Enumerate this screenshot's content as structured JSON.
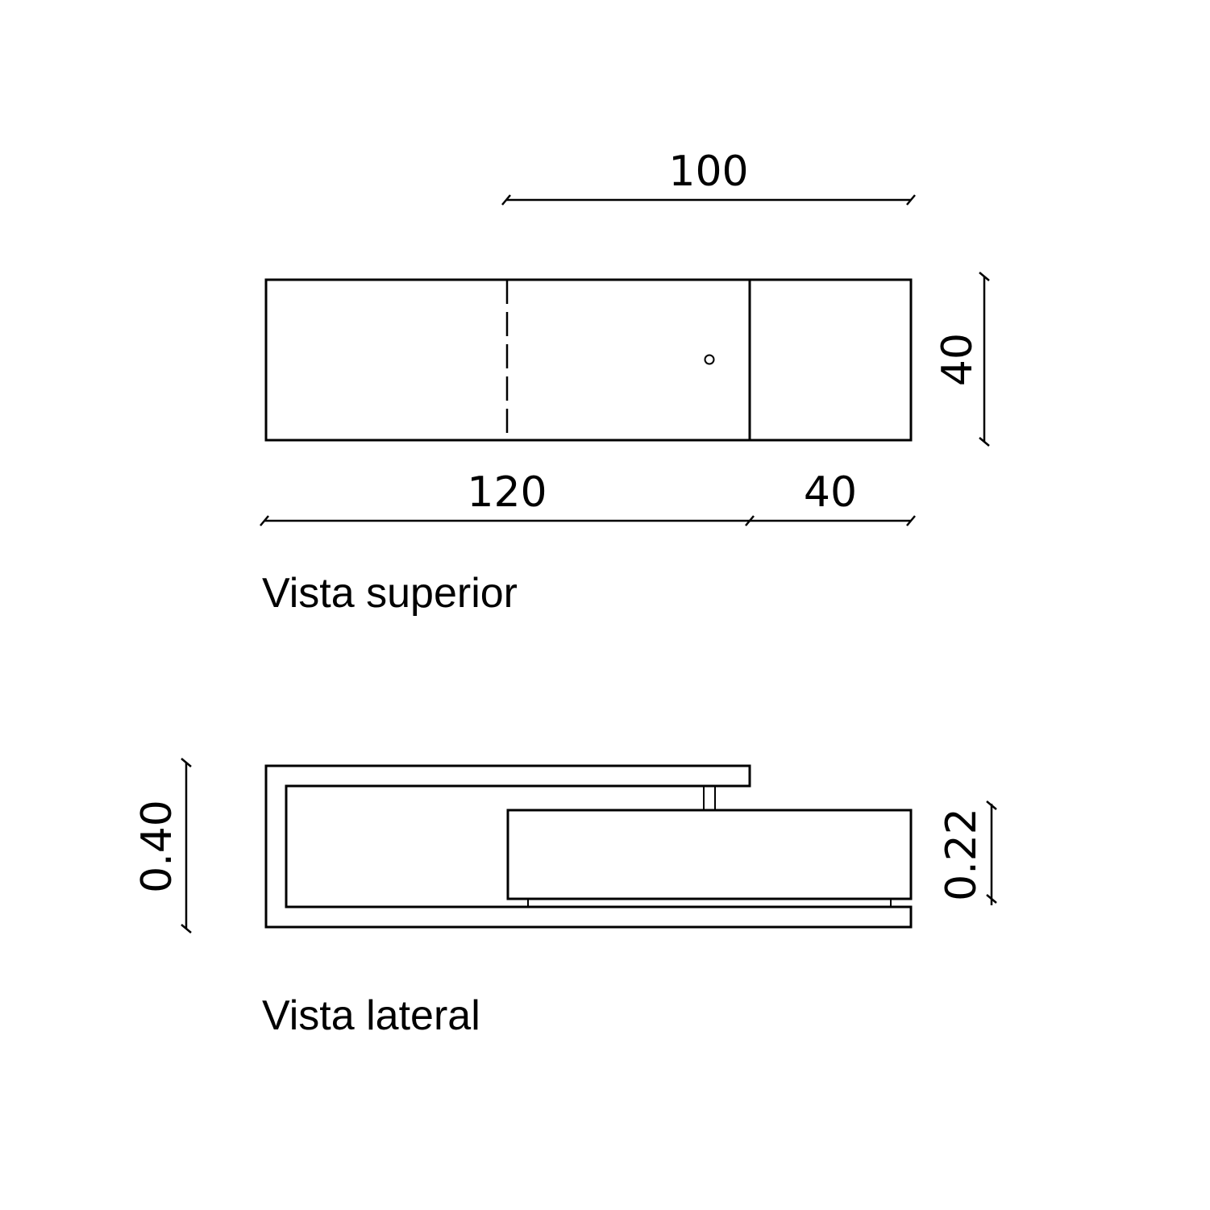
{
  "top_view": {
    "label": "Vista superior",
    "dimensions": {
      "overall_upper": "100",
      "depth": "40",
      "length_main": "120",
      "length_side": "40"
    }
  },
  "side_view": {
    "label": "Vista lateral",
    "dimensions": {
      "height_total": "0.40",
      "height_box": "0.22"
    }
  },
  "colors": {
    "line": "#000000",
    "background": "#ffffff"
  }
}
